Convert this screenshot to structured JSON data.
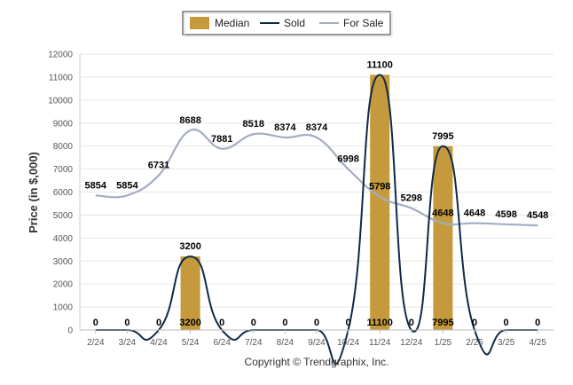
{
  "chart_data": {
    "type": "bar",
    "categories": [
      "2/24",
      "3/24",
      "4/24",
      "5/24",
      "6/24",
      "7/24",
      "8/24",
      "9/24",
      "10/24",
      "11/24",
      "12/24",
      "1/25",
      "2/25",
      "3/25",
      "4/25"
    ],
    "series": [
      {
        "name": "Median",
        "kind": "bar",
        "color": "#c49a3c",
        "values": [
          0,
          0,
          0,
          3200,
          0,
          0,
          0,
          0,
          0,
          11100,
          0,
          7995,
          0,
          0,
          0
        ]
      },
      {
        "name": "Sold",
        "kind": "line",
        "color": "#0e2a47",
        "values": [
          0,
          0,
          0,
          3200,
          0,
          0,
          0,
          0,
          0,
          11100,
          0,
          7995,
          0,
          0,
          0
        ]
      },
      {
        "name": "For Sale",
        "kind": "line",
        "color": "#a3adc2",
        "values": [
          5854,
          5854,
          6731,
          8688,
          7881,
          8518,
          8374,
          8374,
          6998,
          5798,
          5298,
          4648,
          4648,
          4598,
          4548
        ]
      }
    ],
    "ylabel": "Price (in $,000)",
    "ylim": [
      0,
      12000
    ],
    "yticks": [
      0,
      1000,
      2000,
      3000,
      4000,
      5000,
      6000,
      7000,
      8000,
      9000,
      10000,
      11000,
      12000
    ],
    "grid": true,
    "legend_position": "top-center"
  },
  "copyright": "Copyright © Trendgraphix, Inc."
}
